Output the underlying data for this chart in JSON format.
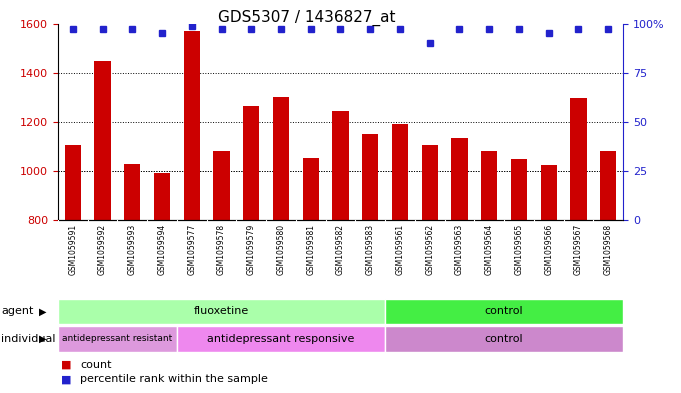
{
  "title": "GDS5307 / 1436827_at",
  "samples": [
    "GSM1059591",
    "GSM1059592",
    "GSM1059593",
    "GSM1059594",
    "GSM1059577",
    "GSM1059578",
    "GSM1059579",
    "GSM1059580",
    "GSM1059581",
    "GSM1059582",
    "GSM1059583",
    "GSM1059561",
    "GSM1059562",
    "GSM1059563",
    "GSM1059564",
    "GSM1059565",
    "GSM1059566",
    "GSM1059567",
    "GSM1059568"
  ],
  "counts": [
    1107,
    1449,
    1028,
    993,
    1570,
    1083,
    1264,
    1300,
    1052,
    1243,
    1151,
    1193,
    1107,
    1133,
    1083,
    1049,
    1024,
    1295,
    1083
  ],
  "percentiles": [
    97,
    97,
    97,
    95,
    99,
    97,
    97,
    97,
    97,
    97,
    97,
    97,
    90,
    97,
    97,
    97,
    95,
    97,
    97
  ],
  "bar_color": "#cc0000",
  "dot_color": "#2222cc",
  "ymin": 800,
  "ymax": 1600,
  "yticks_left": [
    800,
    1000,
    1200,
    1400,
    1600
  ],
  "yticks_right": [
    0,
    25,
    50,
    75,
    100
  ],
  "grid_values": [
    1000,
    1200,
    1400
  ],
  "agent_groups": [
    {
      "label": "fluoxetine",
      "start": 0,
      "end": 10,
      "color": "#aaffaa"
    },
    {
      "label": "control",
      "start": 11,
      "end": 18,
      "color": "#44ee44"
    }
  ],
  "individual_groups": [
    {
      "label": "antidepressant resistant",
      "start": 0,
      "end": 3,
      "color": "#dd99dd"
    },
    {
      "label": "antidepressant responsive",
      "start": 4,
      "end": 10,
      "color": "#ee88ee"
    },
    {
      "label": "control",
      "start": 11,
      "end": 18,
      "color": "#cc88cc"
    }
  ],
  "legend_count_label": "count",
  "legend_pct_label": "percentile rank within the sample",
  "agent_label": "agent",
  "individual_label": "individual",
  "background_color": "#ffffff",
  "plot_bg_color": "#ffffff",
  "xtick_bg_color": "#d8d8d8"
}
